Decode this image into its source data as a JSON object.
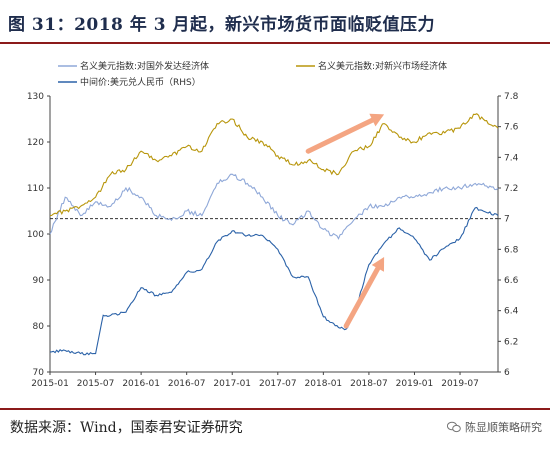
{
  "figure": {
    "title": "图 31：2018 年 3 月起，新兴市场货币面临贬值压力",
    "source": "数据来源：Wind，国泰君安证券研究",
    "brand": "陈显顺策略研究",
    "brand_icon": "wechat-icon"
  },
  "chart_data": {
    "type": "line",
    "title": "",
    "xlabel": "",
    "ylabel": "",
    "ylabel_right": "",
    "xlim": [
      "2015-01",
      "2019-12"
    ],
    "ylim_left": [
      70,
      130
    ],
    "ylim_right": [
      6.0,
      7.8
    ],
    "x_ticks": [
      "2015-01",
      "2015-07",
      "2016-01",
      "2016-07",
      "2017-01",
      "2017-07",
      "2018-01",
      "2018-07",
      "2019-01",
      "2019-07"
    ],
    "y_ticks_left": [
      "70",
      "80",
      "90",
      "100",
      "110",
      "120",
      "130"
    ],
    "y_ticks_right": [
      "6",
      "6.2",
      "6.4",
      "6.6",
      "6.8",
      "7",
      "7.2",
      "7.4",
      "7.6",
      "7.8"
    ],
    "legend_position": "top",
    "grid": false,
    "reference_line": {
      "axis": "right",
      "value": 7.0,
      "style": "dashed",
      "color": "#333333"
    },
    "series": [
      {
        "name": "名义美元指数:对国外发达经济体",
        "axis": "left",
        "color": "#8fa8d8",
        "x": [
          "2015-01",
          "2015-03",
          "2015-05",
          "2015-07",
          "2015-09",
          "2015-11",
          "2016-01",
          "2016-03",
          "2016-05",
          "2016-07",
          "2016-09",
          "2016-11",
          "2017-01",
          "2017-03",
          "2017-05",
          "2017-07",
          "2017-09",
          "2017-11",
          "2018-01",
          "2018-03",
          "2018-05",
          "2018-07",
          "2018-09",
          "2018-11",
          "2019-01",
          "2019-03",
          "2019-05",
          "2019-07",
          "2019-09",
          "2019-12"
        ],
        "values": [
          100,
          108,
          104,
          107,
          106,
          110,
          108,
          104,
          103,
          105,
          104,
          111,
          113,
          111,
          108,
          104,
          102,
          105,
          101,
          99,
          103,
          106,
          106,
          108,
          108,
          109,
          110,
          110,
          111,
          110
        ]
      },
      {
        "name": "名义美元指数:对新兴市场经济体",
        "axis": "left",
        "color": "#b8960c",
        "x": [
          "2015-01",
          "2015-03",
          "2015-05",
          "2015-07",
          "2015-09",
          "2015-11",
          "2016-01",
          "2016-03",
          "2016-05",
          "2016-07",
          "2016-09",
          "2016-11",
          "2017-01",
          "2017-03",
          "2017-05",
          "2017-07",
          "2017-09",
          "2017-11",
          "2018-01",
          "2018-03",
          "2018-05",
          "2018-07",
          "2018-09",
          "2018-11",
          "2019-01",
          "2019-03",
          "2019-05",
          "2019-07",
          "2019-09",
          "2019-12"
        ],
        "values": [
          104,
          105,
          106,
          108,
          113,
          114,
          118,
          116,
          117,
          119,
          118,
          124,
          125,
          121,
          120,
          117,
          115,
          116,
          114,
          113,
          118,
          119,
          124,
          121,
          120,
          122,
          122,
          123,
          126,
          123
        ]
      },
      {
        "name": "中间价:美元兑人民币（RHS）",
        "axis": "right",
        "color": "#2b62a8",
        "x": [
          "2015-01",
          "2015-03",
          "2015-05",
          "2015-07",
          "2015-08",
          "2015-09",
          "2015-11",
          "2016-01",
          "2016-03",
          "2016-05",
          "2016-07",
          "2016-09",
          "2016-11",
          "2017-01",
          "2017-03",
          "2017-05",
          "2017-07",
          "2017-09",
          "2017-11",
          "2018-01",
          "2018-03",
          "2018-04",
          "2018-05",
          "2018-07",
          "2018-09",
          "2018-11",
          "2019-01",
          "2019-03",
          "2019-05",
          "2019-07",
          "2019-09",
          "2019-12"
        ],
        "values": [
          6.13,
          6.14,
          6.12,
          6.12,
          6.37,
          6.37,
          6.39,
          6.55,
          6.5,
          6.52,
          6.65,
          6.67,
          6.85,
          6.92,
          6.89,
          6.89,
          6.8,
          6.62,
          6.62,
          6.36,
          6.29,
          6.28,
          6.37,
          6.7,
          6.84,
          6.94,
          6.87,
          6.73,
          6.81,
          6.87,
          7.07,
          7.02
        ]
      }
    ],
    "annotations": [
      {
        "type": "arrow",
        "color": "#f4a582",
        "from": [
          "2017-11",
          118
        ],
        "to": [
          "2018-09",
          126
        ]
      },
      {
        "type": "arrow",
        "color": "#f4a582",
        "from": [
          "2018-04",
          80
        ],
        "to": [
          "2018-09",
          95
        ]
      }
    ]
  }
}
